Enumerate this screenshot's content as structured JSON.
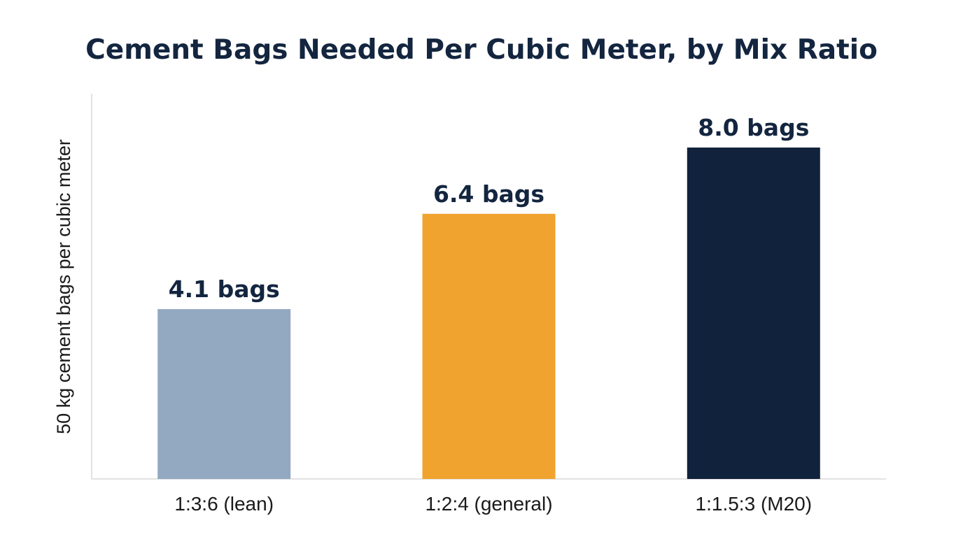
{
  "chart_data": {
    "type": "bar",
    "title": "Cement Bags Needed Per Cubic Meter, by Mix Ratio",
    "xlabel": "",
    "ylabel": "50 kg cement bags per cubic meter",
    "categories": [
      "1:3:6 (lean)",
      "1:2:4 (general)",
      "1:1.5:3 (M20)"
    ],
    "values": [
      4.1,
      6.4,
      8.0
    ],
    "data_labels": [
      "4.1 bags",
      "6.4 bags",
      "8.0 bags"
    ],
    "bar_colors": [
      "#93a9c1",
      "#f0a32e",
      "#11223d"
    ],
    "ylim": [
      0,
      9.3
    ],
    "grid": false,
    "legend": "none"
  }
}
